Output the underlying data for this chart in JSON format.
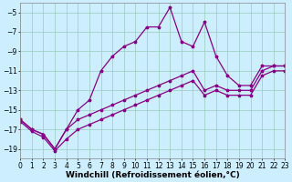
{
  "x": [
    0,
    1,
    2,
    3,
    4,
    5,
    6,
    7,
    8,
    9,
    10,
    11,
    12,
    13,
    14,
    15,
    16,
    17,
    18,
    19,
    20,
    21,
    22,
    23
  ],
  "line_jagged": [
    -16,
    -17,
    -17.5,
    -19,
    -17,
    -15,
    -14,
    -11,
    -9.5,
    -8.5,
    -8,
    -6.5,
    -6.5,
    -4.5,
    -8,
    -8.5,
    -6,
    -9.5,
    -11.5,
    -12.5,
    -12.5,
    -10.5,
    -10.5,
    -10.5
  ],
  "line_smooth1": [
    -16,
    -17,
    -17.5,
    -19,
    -17,
    -16,
    -15.5,
    -15,
    -14.5,
    -14,
    -13.5,
    -13,
    -12.5,
    -12,
    -11.5,
    -11,
    -13,
    -12.5,
    -13,
    -13,
    -13,
    -11,
    -10.5,
    -10.5
  ],
  "line_smooth2": [
    -16.2,
    -17.2,
    -17.8,
    -19.2,
    -18,
    -17,
    -16.5,
    -16,
    -15.5,
    -15,
    -14.5,
    -14,
    -13.5,
    -13,
    -12.5,
    -12,
    -13.5,
    -13,
    -13.5,
    -13.5,
    -13.5,
    -11.5,
    -11,
    -11
  ],
  "bg_color": "#cceeff",
  "line_color": "#880088",
  "grid_color": "#99ccbb",
  "xlabel": "Windchill (Refroidissement éolien,°C)",
  "xlabel_fontsize": 6.5,
  "tick_fontsize": 5.5,
  "ylim": [
    -20,
    -4
  ],
  "xlim": [
    0,
    23
  ],
  "yticks": [
    -5,
    -7,
    -9,
    -11,
    -13,
    -15,
    -17,
    -19
  ],
  "xticks": [
    0,
    1,
    2,
    3,
    4,
    5,
    6,
    7,
    8,
    9,
    10,
    11,
    12,
    13,
    14,
    15,
    16,
    17,
    18,
    19,
    20,
    21,
    22,
    23
  ]
}
